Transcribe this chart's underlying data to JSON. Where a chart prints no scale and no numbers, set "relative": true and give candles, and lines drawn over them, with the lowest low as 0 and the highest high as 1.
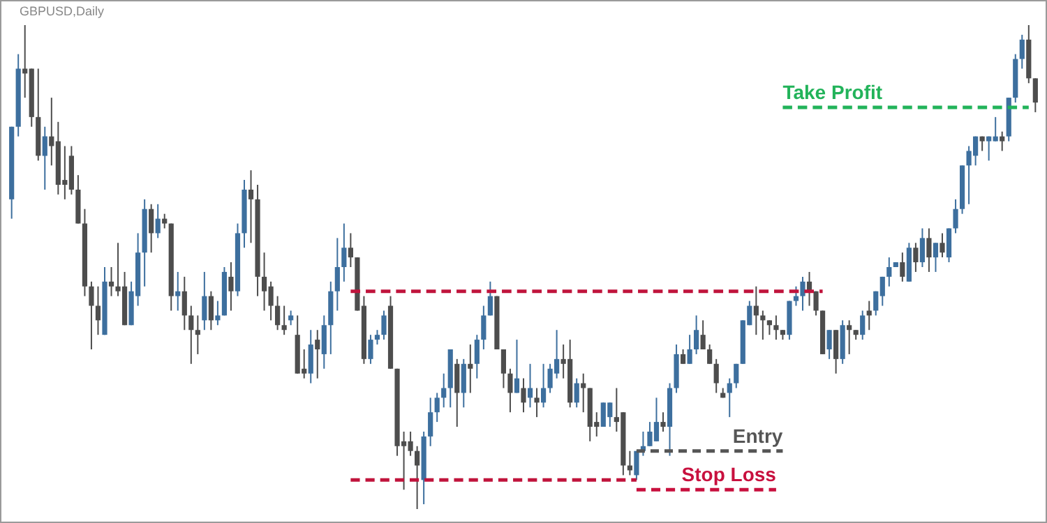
{
  "chart_data": {
    "type": "candlestick",
    "title": "GBPUSD,Daily",
    "relative": true,
    "categories": [
      null,
      null,
      null,
      null,
      null,
      null,
      null,
      null,
      null,
      null,
      null,
      null,
      null,
      null,
      null,
      null,
      null,
      null,
      null,
      null,
      null,
      null,
      null,
      null,
      null,
      null,
      null,
      null,
      null,
      null,
      null,
      null,
      null,
      null,
      null,
      null,
      null,
      null,
      null,
      null,
      null,
      null,
      null,
      null,
      null,
      null,
      null,
      null,
      null,
      null,
      null,
      null,
      null,
      null,
      null,
      null,
      null,
      null,
      null,
      null,
      null,
      null,
      null,
      null,
      null,
      null,
      null,
      null,
      null,
      null,
      null,
      null,
      null,
      null,
      null,
      null,
      null,
      null,
      null,
      null,
      null,
      null,
      null,
      null,
      null,
      null,
      null,
      null,
      null,
      null,
      null,
      null,
      null,
      null,
      null,
      null,
      null,
      null,
      null,
      null,
      null,
      null,
      null,
      null,
      null,
      null,
      null,
      null,
      null,
      null,
      null,
      null,
      null,
      null,
      null,
      null,
      null,
      null,
      null,
      null,
      null,
      null,
      null,
      null,
      null,
      null,
      null,
      null,
      null,
      null,
      null,
      null,
      null,
      null,
      null,
      null,
      null,
      null,
      null,
      null,
      null,
      null,
      null,
      null,
      null,
      null,
      null,
      null,
      null,
      null,
      null,
      null,
      null,
      null,
      null
    ],
    "ohlc": [
      [
        0.64,
        0.79,
        0.6,
        0.79
      ],
      [
        0.79,
        0.94,
        0.77,
        0.91
      ],
      [
        0.91,
        1.0,
        0.85,
        0.9
      ],
      [
        0.91,
        0.91,
        0.79,
        0.81
      ],
      [
        0.81,
        0.91,
        0.72,
        0.73
      ],
      [
        0.73,
        0.79,
        0.66,
        0.77
      ],
      [
        0.77,
        0.85,
        0.71,
        0.75
      ],
      [
        0.76,
        0.8,
        0.65,
        0.67
      ],
      [
        0.68,
        0.75,
        0.64,
        0.67
      ],
      [
        0.73,
        0.75,
        0.65,
        0.66
      ],
      [
        0.66,
        0.69,
        0.59,
        0.59
      ],
      [
        0.59,
        0.62,
        0.44,
        0.46
      ],
      [
        0.46,
        0.47,
        0.33,
        0.42
      ],
      [
        0.42,
        0.46,
        0.36,
        0.39
      ],
      [
        0.36,
        0.5,
        0.36,
        0.47
      ],
      [
        0.47,
        0.5,
        0.44,
        0.46
      ],
      [
        0.46,
        0.55,
        0.44,
        0.45
      ],
      [
        0.46,
        0.49,
        0.38,
        0.38
      ],
      [
        0.38,
        0.47,
        0.38,
        0.45
      ],
      [
        0.44,
        0.57,
        0.42,
        0.53
      ],
      [
        0.53,
        0.64,
        0.46,
        0.62
      ],
      [
        0.62,
        0.63,
        0.53,
        0.57
      ],
      [
        0.57,
        0.63,
        0.56,
        0.6
      ],
      [
        0.6,
        0.61,
        0.58,
        0.59
      ],
      [
        0.59,
        0.59,
        0.41,
        0.44
      ],
      [
        0.44,
        0.49,
        0.41,
        0.45
      ],
      [
        0.45,
        0.48,
        0.37,
        0.4
      ],
      [
        0.4,
        0.42,
        0.3,
        0.37
      ],
      [
        0.37,
        0.4,
        0.32,
        0.36
      ],
      [
        0.39,
        0.49,
        0.37,
        0.44
      ],
      [
        0.44,
        0.45,
        0.37,
        0.39
      ],
      [
        0.39,
        0.43,
        0.38,
        0.4
      ],
      [
        0.4,
        0.5,
        0.4,
        0.49
      ],
      [
        0.48,
        0.51,
        0.41,
        0.45
      ],
      [
        0.45,
        0.59,
        0.44,
        0.57
      ],
      [
        0.57,
        0.68,
        0.54,
        0.66
      ],
      [
        0.66,
        0.7,
        0.55,
        0.64
      ],
      [
        0.64,
        0.67,
        0.44,
        0.48
      ],
      [
        0.48,
        0.53,
        0.41,
        0.45
      ],
      [
        0.46,
        0.47,
        0.39,
        0.42
      ],
      [
        0.42,
        0.44,
        0.37,
        0.38
      ],
      [
        0.38,
        0.42,
        0.36,
        0.37
      ],
      [
        0.39,
        0.41,
        0.38,
        0.4
      ],
      [
        0.36,
        0.4,
        0.28,
        0.28
      ],
      [
        0.29,
        0.33,
        0.27,
        0.28
      ],
      [
        0.28,
        0.37,
        0.26,
        0.34
      ],
      [
        0.35,
        0.37,
        0.27,
        0.33
      ],
      [
        0.32,
        0.4,
        0.29,
        0.38
      ],
      [
        0.38,
        0.47,
        0.32,
        0.45
      ],
      [
        0.45,
        0.56,
        0.41,
        0.5
      ],
      [
        0.5,
        0.59,
        0.47,
        0.54
      ],
      [
        0.54,
        0.57,
        0.5,
        0.52
      ],
      [
        0.52,
        0.52,
        0.41,
        0.41
      ],
      [
        0.42,
        0.44,
        0.3,
        0.31
      ],
      [
        0.31,
        0.36,
        0.3,
        0.35
      ],
      [
        0.35,
        0.37,
        0.34,
        0.36
      ],
      [
        0.36,
        0.41,
        0.35,
        0.4
      ],
      [
        0.42,
        0.44,
        0.29,
        0.29
      ],
      [
        0.29,
        0.29,
        0.11,
        0.13
      ],
      [
        0.14,
        0.16,
        0.04,
        0.13
      ],
      [
        0.14,
        0.16,
        0.11,
        0.12
      ],
      [
        0.12,
        0.13,
        0.0,
        0.09
      ],
      [
        0.06,
        0.16,
        0.01,
        0.15
      ],
      [
        0.15,
        0.23,
        0.13,
        0.2
      ],
      [
        0.2,
        0.24,
        0.18,
        0.23
      ],
      [
        0.23,
        0.28,
        0.21,
        0.25
      ],
      [
        0.25,
        0.33,
        0.21,
        0.33
      ],
      [
        0.3,
        0.31,
        0.17,
        0.24
      ],
      [
        0.24,
        0.31,
        0.21,
        0.3
      ],
      [
        0.3,
        0.34,
        0.24,
        0.29
      ],
      [
        0.3,
        0.36,
        0.27,
        0.35
      ],
      [
        0.35,
        0.42,
        0.33,
        0.4
      ],
      [
        0.4,
        0.47,
        0.4,
        0.44
      ],
      [
        0.44,
        0.44,
        0.33,
        0.33
      ],
      [
        0.33,
        0.33,
        0.25,
        0.28
      ],
      [
        0.28,
        0.29,
        0.2,
        0.24
      ],
      [
        0.24,
        0.35,
        0.24,
        0.27
      ],
      [
        0.25,
        0.27,
        0.2,
        0.22
      ],
      [
        0.23,
        0.3,
        0.21,
        0.25
      ],
      [
        0.23,
        0.25,
        0.19,
        0.22
      ],
      [
        0.22,
        0.3,
        0.21,
        0.25
      ],
      [
        0.25,
        0.3,
        0.24,
        0.29
      ],
      [
        0.28,
        0.37,
        0.27,
        0.31
      ],
      [
        0.31,
        0.34,
        0.27,
        0.3
      ],
      [
        0.31,
        0.35,
        0.21,
        0.22
      ],
      [
        0.22,
        0.27,
        0.21,
        0.26
      ],
      [
        0.26,
        0.28,
        0.2,
        0.25
      ],
      [
        0.25,
        0.25,
        0.14,
        0.17
      ],
      [
        0.18,
        0.2,
        0.15,
        0.17
      ],
      [
        0.17,
        0.22,
        0.17,
        0.22
      ],
      [
        0.19,
        0.22,
        0.17,
        0.22
      ],
      [
        0.19,
        0.25,
        0.16,
        0.18
      ],
      [
        0.2,
        0.2,
        0.07,
        0.09
      ],
      [
        0.09,
        0.12,
        0.07,
        0.08
      ],
      [
        0.07,
        0.12,
        0.06,
        0.12
      ],
      [
        0.12,
        0.16,
        0.11,
        0.13
      ],
      [
        0.13,
        0.18,
        0.13,
        0.16
      ],
      [
        0.14,
        0.23,
        0.14,
        0.18
      ],
      [
        0.18,
        0.2,
        0.16,
        0.17
      ],
      [
        0.17,
        0.26,
        0.11,
        0.25
      ],
      [
        0.25,
        0.34,
        0.24,
        0.32
      ],
      [
        0.32,
        0.33,
        0.3,
        0.3
      ],
      [
        0.3,
        0.36,
        0.3,
        0.33
      ],
      [
        0.33,
        0.4,
        0.32,
        0.37
      ],
      [
        0.36,
        0.39,
        0.33,
        0.33
      ],
      [
        0.33,
        0.34,
        0.3,
        0.3
      ],
      [
        0.3,
        0.31,
        0.24,
        0.26
      ],
      [
        0.24,
        0.25,
        0.23,
        0.23
      ],
      [
        0.24,
        0.27,
        0.19,
        0.26
      ],
      [
        0.26,
        0.3,
        0.25,
        0.3
      ],
      [
        0.3,
        0.39,
        0.3,
        0.39
      ],
      [
        0.38,
        0.43,
        0.38,
        0.42
      ],
      [
        0.42,
        0.46,
        0.36,
        0.4
      ],
      [
        0.4,
        0.41,
        0.35,
        0.39
      ],
      [
        0.39,
        0.39,
        0.36,
        0.38
      ],
      [
        0.38,
        0.4,
        0.35,
        0.37
      ],
      [
        0.37,
        0.37,
        0.35,
        0.36
      ],
      [
        0.36,
        0.43,
        0.35,
        0.43
      ],
      [
        0.43,
        0.46,
        0.42,
        0.44
      ],
      [
        0.44,
        0.48,
        0.41,
        0.47
      ],
      [
        0.47,
        0.49,
        0.42,
        0.45
      ],
      [
        0.45,
        0.45,
        0.4,
        0.41
      ],
      [
        0.41,
        0.41,
        0.32,
        0.32
      ],
      [
        0.33,
        0.37,
        0.31,
        0.37
      ],
      [
        0.37,
        0.37,
        0.28,
        0.31
      ],
      [
        0.31,
        0.39,
        0.3,
        0.38
      ],
      [
        0.38,
        0.39,
        0.32,
        0.37
      ],
      [
        0.37,
        0.37,
        0.35,
        0.36
      ],
      [
        0.36,
        0.41,
        0.35,
        0.4
      ],
      [
        0.41,
        0.43,
        0.37,
        0.4
      ],
      [
        0.41,
        0.45,
        0.4,
        0.45
      ],
      [
        0.44,
        0.48,
        0.42,
        0.48
      ],
      [
        0.48,
        0.52,
        0.46,
        0.5
      ],
      [
        0.5,
        0.51,
        0.5,
        0.51
      ],
      [
        0.51,
        0.53,
        0.47,
        0.48
      ],
      [
        0.47,
        0.55,
        0.47,
        0.54
      ],
      [
        0.54,
        0.55,
        0.49,
        0.51
      ],
      [
        0.51,
        0.58,
        0.5,
        0.56
      ],
      [
        0.56,
        0.58,
        0.49,
        0.52
      ],
      [
        0.52,
        0.55,
        0.49,
        0.55
      ],
      [
        0.55,
        0.57,
        0.52,
        0.53
      ],
      [
        0.52,
        0.58,
        0.51,
        0.58
      ],
      [
        0.58,
        0.64,
        0.57,
        0.62
      ],
      [
        0.62,
        0.71,
        0.61,
        0.71
      ],
      [
        0.71,
        0.75,
        0.63,
        0.74
      ],
      [
        0.73,
        0.77,
        0.71,
        0.77
      ],
      [
        0.77,
        0.77,
        0.74,
        0.76
      ],
      [
        0.76,
        0.77,
        0.72,
        0.77
      ],
      [
        0.76,
        0.81,
        0.76,
        0.77
      ],
      [
        0.77,
        0.78,
        0.74,
        0.76
      ],
      [
        0.77,
        0.85,
        0.76,
        0.85
      ],
      [
        0.85,
        0.94,
        0.84,
        0.93
      ],
      [
        0.93,
        0.98,
        0.91,
        0.97
      ],
      [
        0.97,
        1.0,
        0.88,
        0.89
      ],
      [
        0.89,
        0.89,
        0.82,
        0.84
      ]
    ],
    "colors": [
      "#3d6f9e",
      "#3d6f9e",
      "#4d4d4d",
      "#4d4d4d",
      "#4d4d4d",
      "#3d6f9e",
      "#4d4d4d",
      "#4d4d4d",
      "#4d4d4d",
      "#4d4d4d",
      "#4d4d4d",
      "#4d4d4d",
      "#4d4d4d",
      "#4d4d4d",
      "#3d6f9e",
      "#4d4d4d",
      "#4d4d4d",
      "#4d4d4d",
      "#3d6f9e",
      "#3d6f9e",
      "#3d6f9e",
      "#4d4d4d",
      "#3d6f9e",
      "#4d4d4d",
      "#4d4d4d",
      "#3d6f9e",
      "#4d4d4d",
      "#4d4d4d",
      "#4d4d4d",
      "#3d6f9e",
      "#4d4d4d",
      "#3d6f9e",
      "#3d6f9e",
      "#4d4d4d",
      "#3d6f9e",
      "#3d6f9e",
      "#4d4d4d",
      "#4d4d4d",
      "#4d4d4d",
      "#4d4d4d",
      "#4d4d4d",
      "#4d4d4d",
      "#3d6f9e",
      "#4d4d4d",
      "#4d4d4d",
      "#3d6f9e",
      "#4d4d4d",
      "#3d6f9e",
      "#3d6f9e",
      "#3d6f9e",
      "#3d6f9e",
      "#4d4d4d",
      "#4d4d4d",
      "#4d4d4d",
      "#3d6f9e",
      "#3d6f9e",
      "#3d6f9e",
      "#4d4d4d",
      "#4d4d4d",
      "#4d4d4d",
      "#4d4d4d",
      "#4d4d4d",
      "#3d6f9e",
      "#3d6f9e",
      "#3d6f9e",
      "#3d6f9e",
      "#3d6f9e",
      "#4d4d4d",
      "#3d6f9e",
      "#4d4d4d",
      "#3d6f9e",
      "#3d6f9e",
      "#3d6f9e",
      "#4d4d4d",
      "#4d4d4d",
      "#4d4d4d",
      "#3d6f9e",
      "#4d4d4d",
      "#3d6f9e",
      "#4d4d4d",
      "#3d6f9e",
      "#3d6f9e",
      "#3d6f9e",
      "#4d4d4d",
      "#4d4d4d",
      "#3d6f9e",
      "#4d4d4d",
      "#4d4d4d",
      "#4d4d4d",
      "#3d6f9e",
      "#3d6f9e",
      "#4d4d4d",
      "#4d4d4d",
      "#4d4d4d",
      "#3d6f9e",
      "#3d6f9e",
      "#3d6f9e",
      "#3d6f9e",
      "#4d4d4d",
      "#3d6f9e",
      "#3d6f9e",
      "#4d4d4d",
      "#3d6f9e",
      "#3d6f9e",
      "#4d4d4d",
      "#4d4d4d",
      "#4d4d4d",
      "#4d4d4d",
      "#3d6f9e",
      "#3d6f9e",
      "#3d6f9e",
      "#3d6f9e",
      "#4d4d4d",
      "#4d4d4d",
      "#4d4d4d",
      "#4d4d4d",
      "#4d4d4d",
      "#3d6f9e",
      "#3d6f9e",
      "#3d6f9e",
      "#4d4d4d",
      "#4d4d4d",
      "#4d4d4d",
      "#3d6f9e",
      "#4d4d4d",
      "#3d6f9e",
      "#4d4d4d",
      "#4d4d4d",
      "#3d6f9e",
      "#4d4d4d",
      "#3d6f9e",
      "#3d6f9e",
      "#3d6f9e",
      "#3d6f9e",
      "#4d4d4d",
      "#3d6f9e",
      "#4d4d4d",
      "#3d6f9e",
      "#4d4d4d",
      "#3d6f9e",
      "#4d4d4d",
      "#3d6f9e",
      "#3d6f9e",
      "#3d6f9e",
      "#3d6f9e",
      "#3d6f9e",
      "#4d4d4d",
      "#3d6f9e",
      "#3d6f9e",
      "#4d4d4d",
      "#3d6f9e",
      "#3d6f9e",
      "#3d6f9e",
      "#4d4d4d",
      "#4d4d4d"
    ],
    "series": [
      {
        "type": "line",
        "line_style": "dashed",
        "color": "#c0143c",
        "values": [
          null,
          null,
          null,
          null,
          null,
          null,
          null,
          null,
          null,
          null,
          null,
          null,
          null,
          null,
          null,
          null,
          null,
          null,
          null,
          null,
          null,
          null,
          null,
          null,
          null,
          null,
          null,
          null,
          null,
          null,
          null,
          null,
          null,
          null,
          null,
          null,
          null,
          null,
          null,
          null,
          null,
          null,
          null,
          null,
          null,
          null,
          null,
          null,
          null,
          null,
          null,
          0.45,
          0.45,
          0.45,
          0.45,
          0.45,
          0.45,
          0.45,
          0.45,
          0.45,
          0.45,
          0.45,
          0.45,
          0.45,
          0.45,
          0.45,
          0.45,
          0.45,
          0.45,
          0.45,
          0.45,
          0.45,
          0.45,
          0.45,
          0.45,
          0.45,
          0.45,
          0.45,
          0.45,
          0.45,
          0.45,
          0.45,
          0.45,
          0.45,
          0.45,
          0.45,
          0.45,
          0.45,
          0.45,
          0.45,
          0.45,
          0.45,
          0.45,
          0.45,
          0.45,
          0.45,
          0.45,
          0.45,
          0.45,
          0.45,
          0.45,
          0.45,
          0.45,
          0.45,
          0.45,
          0.45,
          0.45,
          0.45,
          0.45,
          0.45,
          0.45,
          0.45,
          0.45,
          0.45,
          0.45,
          0.45,
          0.45,
          0.45,
          0.45,
          0.45,
          0.45,
          0.45,
          0.45,
          null,
          null,
          null,
          null,
          null,
          null,
          null,
          null,
          null,
          null,
          null,
          null,
          null,
          null,
          null,
          null,
          null,
          null,
          null,
          null,
          null,
          null,
          null,
          null,
          null,
          null,
          null,
          null,
          null,
          null,
          null,
          null
        ]
      },
      {
        "type": "line",
        "line_style": "dashed",
        "color": "#c0143c",
        "values": [
          null,
          null,
          null,
          null,
          null,
          null,
          null,
          null,
          null,
          null,
          null,
          null,
          null,
          null,
          null,
          null,
          null,
          null,
          null,
          null,
          null,
          null,
          null,
          null,
          null,
          null,
          null,
          null,
          null,
          null,
          null,
          null,
          null,
          null,
          null,
          null,
          null,
          null,
          null,
          null,
          null,
          null,
          null,
          null,
          null,
          null,
          null,
          null,
          null,
          null,
          null,
          0.06,
          0.06,
          0.06,
          0.06,
          0.06,
          0.06,
          0.06,
          0.06,
          0.06,
          0.06,
          0.06,
          0.06,
          0.06,
          0.06,
          0.06,
          0.06,
          0.06,
          0.06,
          0.06,
          0.06,
          0.06,
          0.06,
          0.06,
          0.06,
          0.06,
          0.06,
          0.06,
          0.06,
          0.06,
          0.06,
          0.06,
          0.06,
          0.06,
          0.06,
          0.06,
          0.06,
          0.06,
          0.06,
          0.06,
          0.06,
          0.06,
          0.06,
          0.06,
          0.06,
          null,
          null,
          null,
          null,
          null,
          null,
          null,
          null,
          null,
          null,
          null,
          null,
          null,
          null,
          null,
          null,
          null,
          null,
          null,
          null,
          null,
          null,
          null,
          null,
          null,
          null,
          null,
          null,
          null,
          null,
          null,
          null,
          null,
          null,
          null,
          null,
          null,
          null,
          null,
          null,
          null,
          null,
          null,
          null,
          null,
          null,
          null,
          null,
          null,
          null,
          null,
          null,
          null,
          null,
          null,
          null,
          null,
          null,
          null,
          null
        ]
      },
      {
        "type": "line",
        "line_style": "dashed",
        "name": "Entry",
        "color": "#555555",
        "values": [
          null,
          null,
          null,
          null,
          null,
          null,
          null,
          null,
          null,
          null,
          null,
          null,
          null,
          null,
          null,
          null,
          null,
          null,
          null,
          null,
          null,
          null,
          null,
          null,
          null,
          null,
          null,
          null,
          null,
          null,
          null,
          null,
          null,
          null,
          null,
          null,
          null,
          null,
          null,
          null,
          null,
          null,
          null,
          null,
          null,
          null,
          null,
          null,
          null,
          null,
          null,
          null,
          null,
          null,
          null,
          null,
          null,
          null,
          null,
          null,
          null,
          null,
          null,
          null,
          null,
          null,
          null,
          null,
          null,
          null,
          null,
          null,
          null,
          null,
          null,
          null,
          null,
          null,
          null,
          null,
          null,
          null,
          null,
          null,
          null,
          null,
          null,
          null,
          null,
          null,
          null,
          null,
          null,
          null,
          0.12,
          0.12,
          0.12,
          0.12,
          0.12,
          0.12,
          0.12,
          0.12,
          0.12,
          0.12,
          0.12,
          0.12,
          0.12,
          0.12,
          0.12,
          0.12,
          0.12,
          0.12,
          0.12,
          0.12,
          0.12,
          0.12,
          0.12,
          null,
          null,
          null,
          null,
          null,
          null,
          null,
          null,
          null,
          null,
          null,
          null,
          null,
          null,
          null,
          null,
          null,
          null,
          null,
          null,
          null,
          null,
          null,
          null,
          null,
          null,
          null,
          null,
          null,
          null,
          null,
          null,
          null,
          null,
          null,
          null,
          null,
          null
        ]
      },
      {
        "type": "line",
        "line_style": "dashed",
        "name": "Stop Loss",
        "color": "#c8103e",
        "values": [
          null,
          null,
          null,
          null,
          null,
          null,
          null,
          null,
          null,
          null,
          null,
          null,
          null,
          null,
          null,
          null,
          null,
          null,
          null,
          null,
          null,
          null,
          null,
          null,
          null,
          null,
          null,
          null,
          null,
          null,
          null,
          null,
          null,
          null,
          null,
          null,
          null,
          null,
          null,
          null,
          null,
          null,
          null,
          null,
          null,
          null,
          null,
          null,
          null,
          null,
          null,
          null,
          null,
          null,
          null,
          null,
          null,
          null,
          null,
          null,
          null,
          null,
          null,
          null,
          null,
          null,
          null,
          null,
          null,
          null,
          null,
          null,
          null,
          null,
          null,
          null,
          null,
          null,
          null,
          null,
          null,
          null,
          null,
          null,
          null,
          null,
          null,
          null,
          null,
          null,
          null,
          null,
          null,
          null,
          0.04,
          0.04,
          0.04,
          0.04,
          0.04,
          0.04,
          0.04,
          0.04,
          0.04,
          0.04,
          0.04,
          0.04,
          0.04,
          0.04,
          0.04,
          0.04,
          0.04,
          0.04,
          0.04,
          0.04,
          0.04,
          0.04,
          null,
          null,
          null,
          null,
          null,
          null,
          null,
          null,
          null,
          null,
          null,
          null,
          null,
          null,
          null,
          null,
          null,
          null,
          null,
          null,
          null,
          null,
          null,
          null,
          null,
          null,
          null,
          null,
          null,
          null,
          null,
          null,
          null,
          null,
          null,
          null,
          null,
          null,
          null
        ]
      },
      {
        "type": "line",
        "line_style": "dashed",
        "name": "Take Profit",
        "color": "#22b35a",
        "values": [
          null,
          null,
          null,
          null,
          null,
          null,
          null,
          null,
          null,
          null,
          null,
          null,
          null,
          null,
          null,
          null,
          null,
          null,
          null,
          null,
          null,
          null,
          null,
          null,
          null,
          null,
          null,
          null,
          null,
          null,
          null,
          null,
          null,
          null,
          null,
          null,
          null,
          null,
          null,
          null,
          null,
          null,
          null,
          null,
          null,
          null,
          null,
          null,
          null,
          null,
          null,
          null,
          null,
          null,
          null,
          null,
          null,
          null,
          null,
          null,
          null,
          null,
          null,
          null,
          null,
          null,
          null,
          null,
          null,
          null,
          null,
          null,
          null,
          null,
          null,
          null,
          null,
          null,
          null,
          null,
          null,
          null,
          null,
          null,
          null,
          null,
          null,
          null,
          null,
          null,
          null,
          null,
          null,
          null,
          null,
          null,
          null,
          null,
          null,
          null,
          null,
          null,
          null,
          null,
          null,
          null,
          null,
          null,
          null,
          null,
          null,
          null,
          null,
          null,
          null,
          null,
          0.83,
          0.83,
          0.83,
          0.83,
          0.83,
          0.83,
          0.83,
          0.83,
          0.83,
          0.83,
          0.83,
          0.83,
          0.83,
          0.83,
          0.83,
          0.83,
          0.83,
          0.83,
          0.83,
          0.83,
          0.83,
          0.83,
          0.83,
          0.83,
          0.83,
          0.83,
          0.83,
          0.83,
          0.83,
          0.83,
          0.83,
          0.83,
          0.83,
          0.83,
          0.83,
          0.83,
          0.83,
          0.83,
          null
        ]
      }
    ]
  }
}
